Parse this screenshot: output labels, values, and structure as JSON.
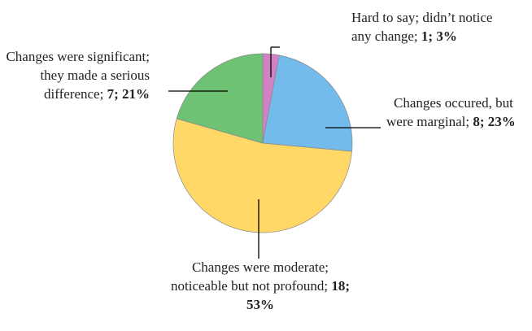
{
  "chart_data": {
    "type": "pie",
    "categories": [
      "Hard to say; didn’t notice any change;",
      "Changes occured, but were marginal;",
      "Changes were moderate; noticeable but not profound;",
      "Changes were significant; they made a serious difference;"
    ],
    "values": [
      1,
      8,
      18,
      7
    ],
    "percents": [
      3,
      23,
      53,
      21
    ],
    "value_labels": [
      "1; 3%",
      "8; 23%",
      "18; 53%",
      "7; 21%"
    ],
    "colors": [
      "#d282c4",
      "#72bbea",
      "#ffd868",
      "#6dc273"
    ]
  }
}
